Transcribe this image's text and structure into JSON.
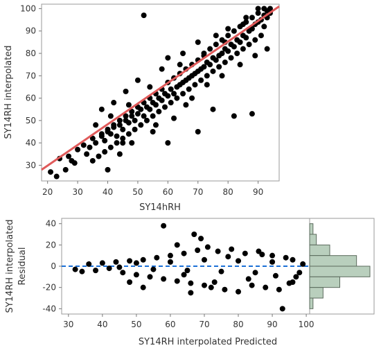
{
  "chart_data": [
    {
      "id": "fit",
      "type": "scatter",
      "xlabel": "SY14hRH",
      "ylabel": "SY14RH interpolated",
      "xlim": [
        18,
        97
      ],
      "ylim": [
        23,
        102
      ],
      "xticks": [
        20,
        30,
        40,
        50,
        60,
        70,
        80,
        90
      ],
      "yticks": [
        30,
        40,
        50,
        60,
        70,
        80,
        90,
        100
      ],
      "grid": false,
      "point_color": "#000000",
      "fit_line": {
        "color": "#e05a5a",
        "x": [
          18,
          97
        ],
        "y": [
          28,
          101
        ]
      },
      "points": [
        [
          21,
          27
        ],
        [
          24,
          33
        ],
        [
          27,
          34
        ],
        [
          28,
          32
        ],
        [
          30,
          37
        ],
        [
          32,
          39
        ],
        [
          34,
          38
        ],
        [
          35,
          42
        ],
        [
          36,
          40
        ],
        [
          38,
          43
        ],
        [
          39,
          41
        ],
        [
          40,
          45
        ],
        [
          41,
          44
        ],
        [
          42,
          47
        ],
        [
          43,
          43
        ],
        [
          44,
          48
        ],
        [
          45,
          46
        ],
        [
          46,
          50
        ],
        [
          47,
          49
        ],
        [
          48,
          52
        ],
        [
          49,
          50
        ],
        [
          50,
          53
        ],
        [
          51,
          55
        ],
        [
          52,
          52
        ],
        [
          53,
          56
        ],
        [
          54,
          55
        ],
        [
          55,
          58
        ],
        [
          56,
          57
        ],
        [
          57,
          60
        ],
        [
          58,
          59
        ],
        [
          59,
          62
        ],
        [
          60,
          61
        ],
        [
          61,
          64
        ],
        [
          62,
          62
        ],
        [
          63,
          65
        ],
        [
          64,
          66
        ],
        [
          65,
          67
        ],
        [
          66,
          68
        ],
        [
          67,
          69
        ],
        [
          68,
          70
        ],
        [
          69,
          71
        ],
        [
          70,
          72
        ],
        [
          71,
          73
        ],
        [
          72,
          74
        ],
        [
          73,
          76
        ],
        [
          74,
          75
        ],
        [
          75,
          78
        ],
        [
          76,
          77
        ],
        [
          77,
          79
        ],
        [
          78,
          80
        ],
        [
          79,
          82
        ],
        [
          80,
          81
        ],
        [
          81,
          84
        ],
        [
          82,
          83
        ],
        [
          83,
          86
        ],
        [
          84,
          85
        ],
        [
          85,
          88
        ],
        [
          86,
          87
        ],
        [
          87,
          90
        ],
        [
          88,
          91
        ],
        [
          89,
          93
        ],
        [
          90,
          94
        ],
        [
          91,
          95
        ],
        [
          92,
          97
        ],
        [
          93,
          99
        ],
        [
          94,
          100
        ],
        [
          52,
          97
        ],
        [
          40,
          28
        ],
        [
          45,
          40
        ],
        [
          55,
          45
        ],
        [
          60,
          40
        ],
        [
          66,
          57
        ],
        [
          70,
          45
        ],
        [
          75,
          55
        ],
        [
          82,
          52
        ],
        [
          88,
          53
        ],
        [
          90,
          100
        ],
        [
          86,
          96
        ],
        [
          79,
          85
        ],
        [
          72,
          80
        ],
        [
          64,
          75
        ],
        [
          58,
          73
        ],
        [
          50,
          68
        ],
        [
          46,
          63
        ],
        [
          42,
          58
        ],
        [
          38,
          55
        ],
        [
          36,
          48
        ],
        [
          44,
          35
        ],
        [
          48,
          40
        ],
        [
          56,
          48
        ],
        [
          62,
          51
        ],
        [
          68,
          60
        ],
        [
          73,
          66
        ],
        [
          78,
          70
        ],
        [
          84,
          75
        ],
        [
          89,
          79
        ],
        [
          93,
          82
        ],
        [
          85,
          93
        ],
        [
          80,
          91
        ],
        [
          76,
          88
        ],
        [
          70,
          85
        ],
        [
          65,
          80
        ],
        [
          60,
          78
        ],
        [
          54,
          65
        ],
        [
          47,
          57
        ],
        [
          41,
          52
        ],
        [
          33,
          35
        ],
        [
          29,
          31
        ],
        [
          26,
          28
        ],
        [
          23,
          25
        ],
        [
          92,
          92
        ],
        [
          91,
          88
        ],
        [
          89,
          86
        ],
        [
          87,
          84
        ],
        [
          85,
          82
        ],
        [
          83,
          80
        ],
        [
          81,
          78
        ],
        [
          79,
          76
        ],
        [
          77,
          74
        ],
        [
          75,
          72
        ],
        [
          73,
          70
        ],
        [
          71,
          68
        ],
        [
          69,
          66
        ],
        [
          67,
          64
        ],
        [
          65,
          62
        ],
        [
          63,
          60
        ],
        [
          61,
          58
        ],
        [
          59,
          56
        ],
        [
          57,
          54
        ],
        [
          55,
          52
        ],
        [
          53,
          50
        ],
        [
          51,
          48
        ],
        [
          49,
          46
        ],
        [
          47,
          44
        ],
        [
          45,
          42
        ],
        [
          43,
          40
        ],
        [
          41,
          38
        ],
        [
          39,
          36
        ],
        [
          37,
          34
        ],
        [
          35,
          32
        ],
        [
          93,
          96
        ],
        [
          94,
          98
        ],
        [
          92,
          100
        ],
        [
          90,
          98
        ],
        [
          88,
          96
        ],
        [
          86,
          94
        ],
        [
          84,
          92
        ],
        [
          82,
          90
        ],
        [
          80,
          88
        ],
        [
          78,
          86
        ],
        [
          76,
          84
        ],
        [
          74,
          82
        ],
        [
          72,
          79
        ],
        [
          70,
          77
        ],
        [
          68,
          75
        ],
        [
          66,
          73
        ],
        [
          64,
          71
        ],
        [
          62,
          69
        ],
        [
          60,
          67
        ],
        [
          58,
          64
        ],
        [
          56,
          62
        ],
        [
          54,
          60
        ],
        [
          52,
          58
        ],
        [
          50,
          56
        ],
        [
          48,
          54
        ],
        [
          46,
          52
        ],
        [
          44,
          50
        ],
        [
          42,
          48
        ],
        [
          40,
          46
        ],
        [
          38,
          44
        ]
      ]
    },
    {
      "id": "residual",
      "type": "scatter",
      "xlabel": "SY14RH interpolated Predicted",
      "ylabel": "SY14RH interpolated Residual",
      "xlim": [
        28,
        101
      ],
      "ylim": [
        -45,
        45
      ],
      "xticks": [
        30,
        40,
        50,
        60,
        70,
        80,
        90,
        100
      ],
      "yticks": [
        -40,
        -20,
        0,
        20,
        40
      ],
      "zero_line": {
        "y": 0,
        "color": "#1a6fd6",
        "style": "dashed"
      },
      "points": [
        [
          32,
          -3
        ],
        [
          34,
          -5
        ],
        [
          36,
          2
        ],
        [
          38,
          -4
        ],
        [
          40,
          3
        ],
        [
          42,
          -2
        ],
        [
          44,
          4
        ],
        [
          46,
          -6
        ],
        [
          48,
          5
        ],
        [
          50,
          -8
        ],
        [
          52,
          6
        ],
        [
          54,
          -10
        ],
        [
          56,
          8
        ],
        [
          58,
          38
        ],
        [
          58,
          -12
        ],
        [
          60,
          10
        ],
        [
          62,
          -14
        ],
        [
          64,
          12
        ],
        [
          66,
          -16
        ],
        [
          67,
          30
        ],
        [
          68,
          15
        ],
        [
          69,
          26
        ],
        [
          70,
          -18
        ],
        [
          71,
          18
        ],
        [
          72,
          -20
        ],
        [
          74,
          14
        ],
        [
          76,
          -22
        ],
        [
          78,
          16
        ],
        [
          80,
          -24
        ],
        [
          82,
          12
        ],
        [
          84,
          -18
        ],
        [
          86,
          14
        ],
        [
          88,
          -20
        ],
        [
          90,
          10
        ],
        [
          92,
          -22
        ],
        [
          93,
          -40
        ],
        [
          94,
          8
        ],
        [
          95,
          -16
        ],
        [
          96,
          6
        ],
        [
          97,
          -10
        ],
        [
          98,
          -6
        ],
        [
          99,
          2
        ],
        [
          45,
          -1
        ],
        [
          50,
          3
        ],
        [
          55,
          -3
        ],
        [
          60,
          4
        ],
        [
          65,
          -4
        ],
        [
          70,
          6
        ],
        [
          75,
          -5
        ],
        [
          80,
          5
        ],
        [
          85,
          -6
        ],
        [
          90,
          4
        ],
        [
          62,
          20
        ],
        [
          64,
          -8
        ],
        [
          73,
          -15
        ],
        [
          77,
          9
        ],
        [
          83,
          -12
        ],
        [
          87,
          11
        ],
        [
          91,
          -9
        ],
        [
          96,
          -15
        ],
        [
          66,
          -25
        ],
        [
          52,
          -20
        ],
        [
          48,
          -15
        ]
      ]
    }
  ],
  "histogram": {
    "color": "#b9cfbd",
    "bins": [
      {
        "range": [
          30,
          40
        ],
        "count": 1
      },
      {
        "range": [
          20,
          30
        ],
        "count": 2
      },
      {
        "range": [
          10,
          20
        ],
        "count": 6
      },
      {
        "range": [
          0,
          10
        ],
        "count": 14
      },
      {
        "range": [
          -10,
          0
        ],
        "count": 18
      },
      {
        "range": [
          -20,
          -10
        ],
        "count": 9
      },
      {
        "range": [
          -30,
          -20
        ],
        "count": 4
      },
      {
        "range": [
          -40,
          -30
        ],
        "count": 1
      }
    ]
  }
}
